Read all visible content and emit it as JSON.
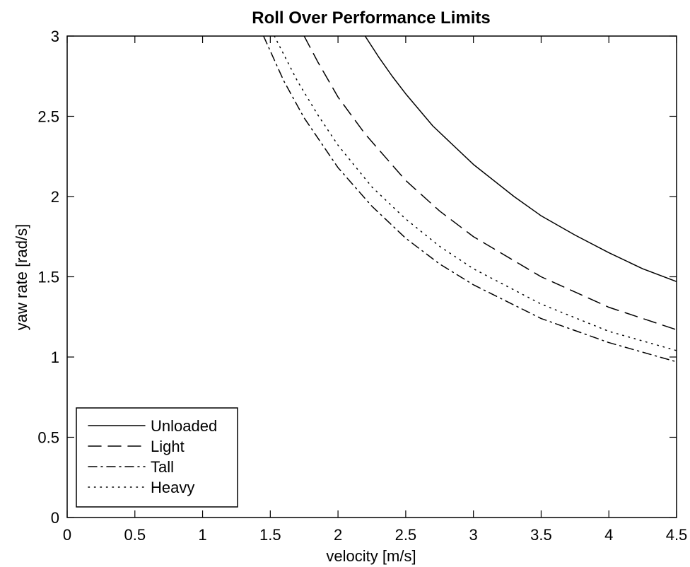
{
  "chart_data": {
    "type": "line",
    "title": "Roll Over Performance Limits",
    "xlabel": "velocity [m/s]",
    "ylabel": "yaw rate [rad/s]",
    "xlim": [
      0,
      4.5
    ],
    "ylim": [
      0,
      3
    ],
    "xticks": [
      0,
      0.5,
      1,
      1.5,
      2,
      2.5,
      3,
      3.5,
      4,
      4.5
    ],
    "yticks": [
      0,
      0.5,
      1,
      1.5,
      2,
      2.5,
      3
    ],
    "xtick_labels": [
      "0",
      "0.5",
      "1",
      "1.5",
      "2",
      "2.5",
      "3",
      "3.5",
      "4",
      "4.5"
    ],
    "ytick_labels": [
      "0",
      "0.5",
      "1",
      "1.5",
      "2",
      "2.5",
      "3"
    ],
    "grid": false,
    "legend_position": "bottom-left",
    "series": [
      {
        "name": "Unloaded",
        "style": "solid",
        "x": [
          2.2,
          2.3,
          2.4,
          2.5,
          2.7,
          3.0,
          3.3,
          3.5,
          3.75,
          4.0,
          4.25,
          4.5
        ],
        "y": [
          3.0,
          2.87,
          2.75,
          2.64,
          2.44,
          2.2,
          2.0,
          1.88,
          1.76,
          1.65,
          1.55,
          1.47
        ]
      },
      {
        "name": "Light",
        "style": "dashed",
        "x": [
          1.75,
          1.85,
          2.0,
          2.2,
          2.5,
          2.75,
          3.0,
          3.5,
          4.0,
          4.5
        ],
        "y": [
          3.0,
          2.84,
          2.62,
          2.39,
          2.1,
          1.91,
          1.75,
          1.5,
          1.31,
          1.17
        ]
      },
      {
        "name": "Tall",
        "style": "dashdot",
        "x": [
          1.45,
          1.6,
          1.75,
          2.0,
          2.25,
          2.5,
          2.75,
          3.0,
          3.5,
          4.0,
          4.5
        ],
        "y": [
          3.0,
          2.72,
          2.49,
          2.18,
          1.94,
          1.74,
          1.58,
          1.45,
          1.24,
          1.09,
          0.97
        ]
      },
      {
        "name": "Heavy",
        "style": "dotted",
        "x": [
          1.53,
          1.7,
          1.85,
          2.0,
          2.25,
          2.5,
          2.75,
          3.0,
          3.5,
          4.0,
          4.5
        ],
        "y": [
          3.0,
          2.72,
          2.51,
          2.32,
          2.06,
          1.86,
          1.69,
          1.55,
          1.33,
          1.16,
          1.04
        ]
      }
    ]
  }
}
